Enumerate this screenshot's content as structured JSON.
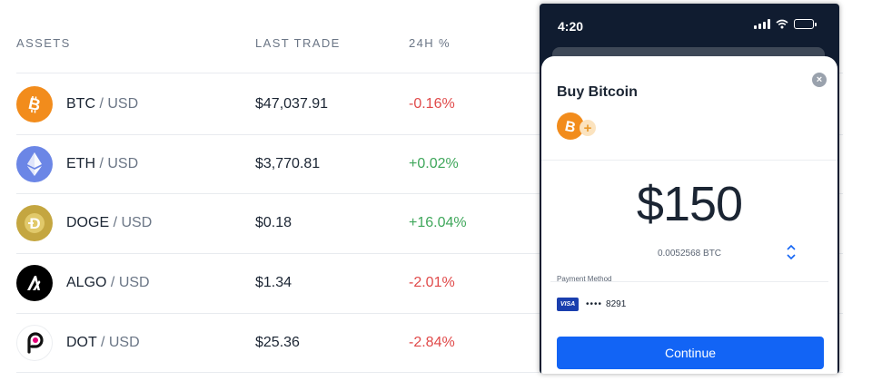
{
  "table": {
    "headers": {
      "assets": "ASSETS",
      "last_trade": "LAST TRADE",
      "change": "24H %"
    },
    "rows": [
      {
        "base": "BTC",
        "sep": "/",
        "quote": "USD",
        "price": "$47,037.91",
        "change": "-0.16%",
        "direction": "down",
        "icon": "bitcoin-icon",
        "color": "#F28C1C"
      },
      {
        "base": "ETH",
        "sep": "/",
        "quote": "USD",
        "price": "$3,770.81",
        "change": "+0.02%",
        "direction": "up",
        "icon": "ethereum-icon",
        "color": "#6B86E6"
      },
      {
        "base": "DOGE",
        "sep": "/",
        "quote": "USD",
        "price": "$0.18",
        "change": "+16.04%",
        "direction": "up",
        "icon": "dogecoin-icon",
        "color": "#C4A640"
      },
      {
        "base": "ALGO",
        "sep": "/",
        "quote": "USD",
        "price": "$1.34",
        "change": "-2.01%",
        "direction": "down",
        "icon": "algorand-icon",
        "color": "#000000"
      },
      {
        "base": "DOT",
        "sep": "/",
        "quote": "USD",
        "price": "$25.36",
        "change": "-2.84%",
        "direction": "down",
        "icon": "polkadot-icon",
        "color": "#E6007A"
      }
    ]
  },
  "phone": {
    "status_time": "4:20",
    "sheet": {
      "title": "Buy Bitcoin",
      "close_glyph": "×",
      "plus_glyph": "+",
      "amount": "$150",
      "btc_amount": "0.0052568 BTC",
      "payment_label": "Payment Method",
      "card_brand": "VISA",
      "card_dots": "••••",
      "card_last4": "8291",
      "continue_label": "Continue"
    }
  },
  "colors": {
    "negative": "#E04A4A",
    "positive": "#3FA75B",
    "primary_button": "#1264F5",
    "phone_bg": "#101C30"
  }
}
